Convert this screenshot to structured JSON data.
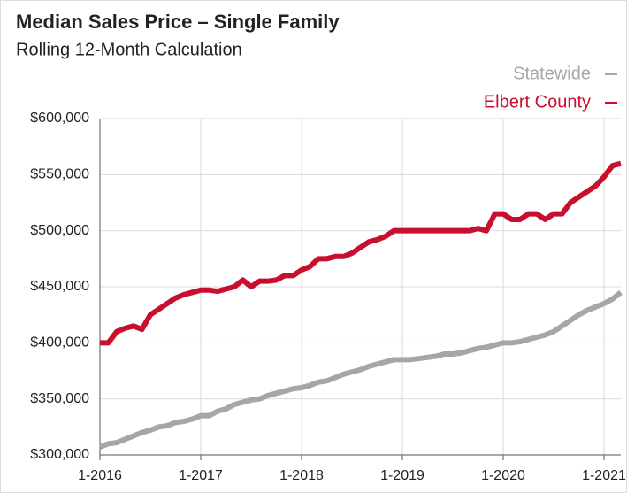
{
  "chart_data": {
    "type": "line",
    "title": "Median Sales Price – Single Family",
    "subtitle": "Rolling 12-Month Calculation",
    "categories": [
      "1-2016",
      null,
      null,
      null,
      null,
      null,
      null,
      null,
      null,
      null,
      null,
      null,
      "1-2017",
      null,
      null,
      null,
      null,
      null,
      null,
      null,
      null,
      null,
      null,
      null,
      "1-2018",
      null,
      null,
      null,
      null,
      null,
      null,
      null,
      null,
      null,
      null,
      null,
      "1-2019",
      null,
      null,
      null,
      null,
      null,
      null,
      null,
      null,
      null,
      null,
      null,
      "1-2020",
      null,
      null,
      null,
      null,
      null,
      null,
      null,
      null,
      null,
      null,
      null,
      "1-2021",
      null,
      null
    ],
    "series": [
      {
        "name": "Statewide",
        "color": "#a6a6a6",
        "values": [
          307000,
          310000,
          311000,
          314000,
          317000,
          320000,
          322000,
          325000,
          326000,
          329000,
          330000,
          332000,
          335000,
          335000,
          339000,
          341000,
          345000,
          347000,
          349000,
          350000,
          353000,
          355000,
          357000,
          359000,
          360000,
          362000,
          365000,
          366000,
          369000,
          372000,
          374000,
          376000,
          379000,
          381000,
          383000,
          385000,
          385000,
          385000,
          386000,
          387000,
          388000,
          390000,
          390000,
          391000,
          393000,
          395000,
          396000,
          398000,
          400000,
          400000,
          401000,
          403000,
          405000,
          407000,
          410000,
          415000,
          420000,
          425000,
          429000,
          432000,
          435000,
          439000,
          445000
        ]
      },
      {
        "name": "Elbert County",
        "color": "#c8102e",
        "values": [
          400000,
          400000,
          410000,
          413000,
          415000,
          412000,
          425000,
          430000,
          435000,
          440000,
          443000,
          445000,
          447000,
          447000,
          446000,
          448000,
          450000,
          456000,
          450000,
          455000,
          455000,
          456000,
          460000,
          460000,
          465000,
          468000,
          475000,
          475000,
          477000,
          477000,
          480000,
          485000,
          490000,
          492000,
          495000,
          500000,
          500000,
          500000,
          500000,
          500000,
          500000,
          500000,
          500000,
          500000,
          500000,
          502000,
          500000,
          515000,
          515000,
          510000,
          510000,
          515000,
          515000,
          510000,
          515000,
          515000,
          525000,
          530000,
          535000,
          540000,
          548000,
          558000,
          560000
        ]
      }
    ],
    "ylim": [
      300000,
      600000
    ],
    "yticks": [
      {
        "value": 300000,
        "label": "$300,000"
      },
      {
        "value": 350000,
        "label": "$350,000"
      },
      {
        "value": 400000,
        "label": "$400,000"
      },
      {
        "value": 450000,
        "label": "$450,000"
      },
      {
        "value": 500000,
        "label": "$500,000"
      },
      {
        "value": 550000,
        "label": "$550,000"
      },
      {
        "value": 600000,
        "label": "$600,000"
      }
    ],
    "grid": true,
    "legend": "top-right"
  }
}
